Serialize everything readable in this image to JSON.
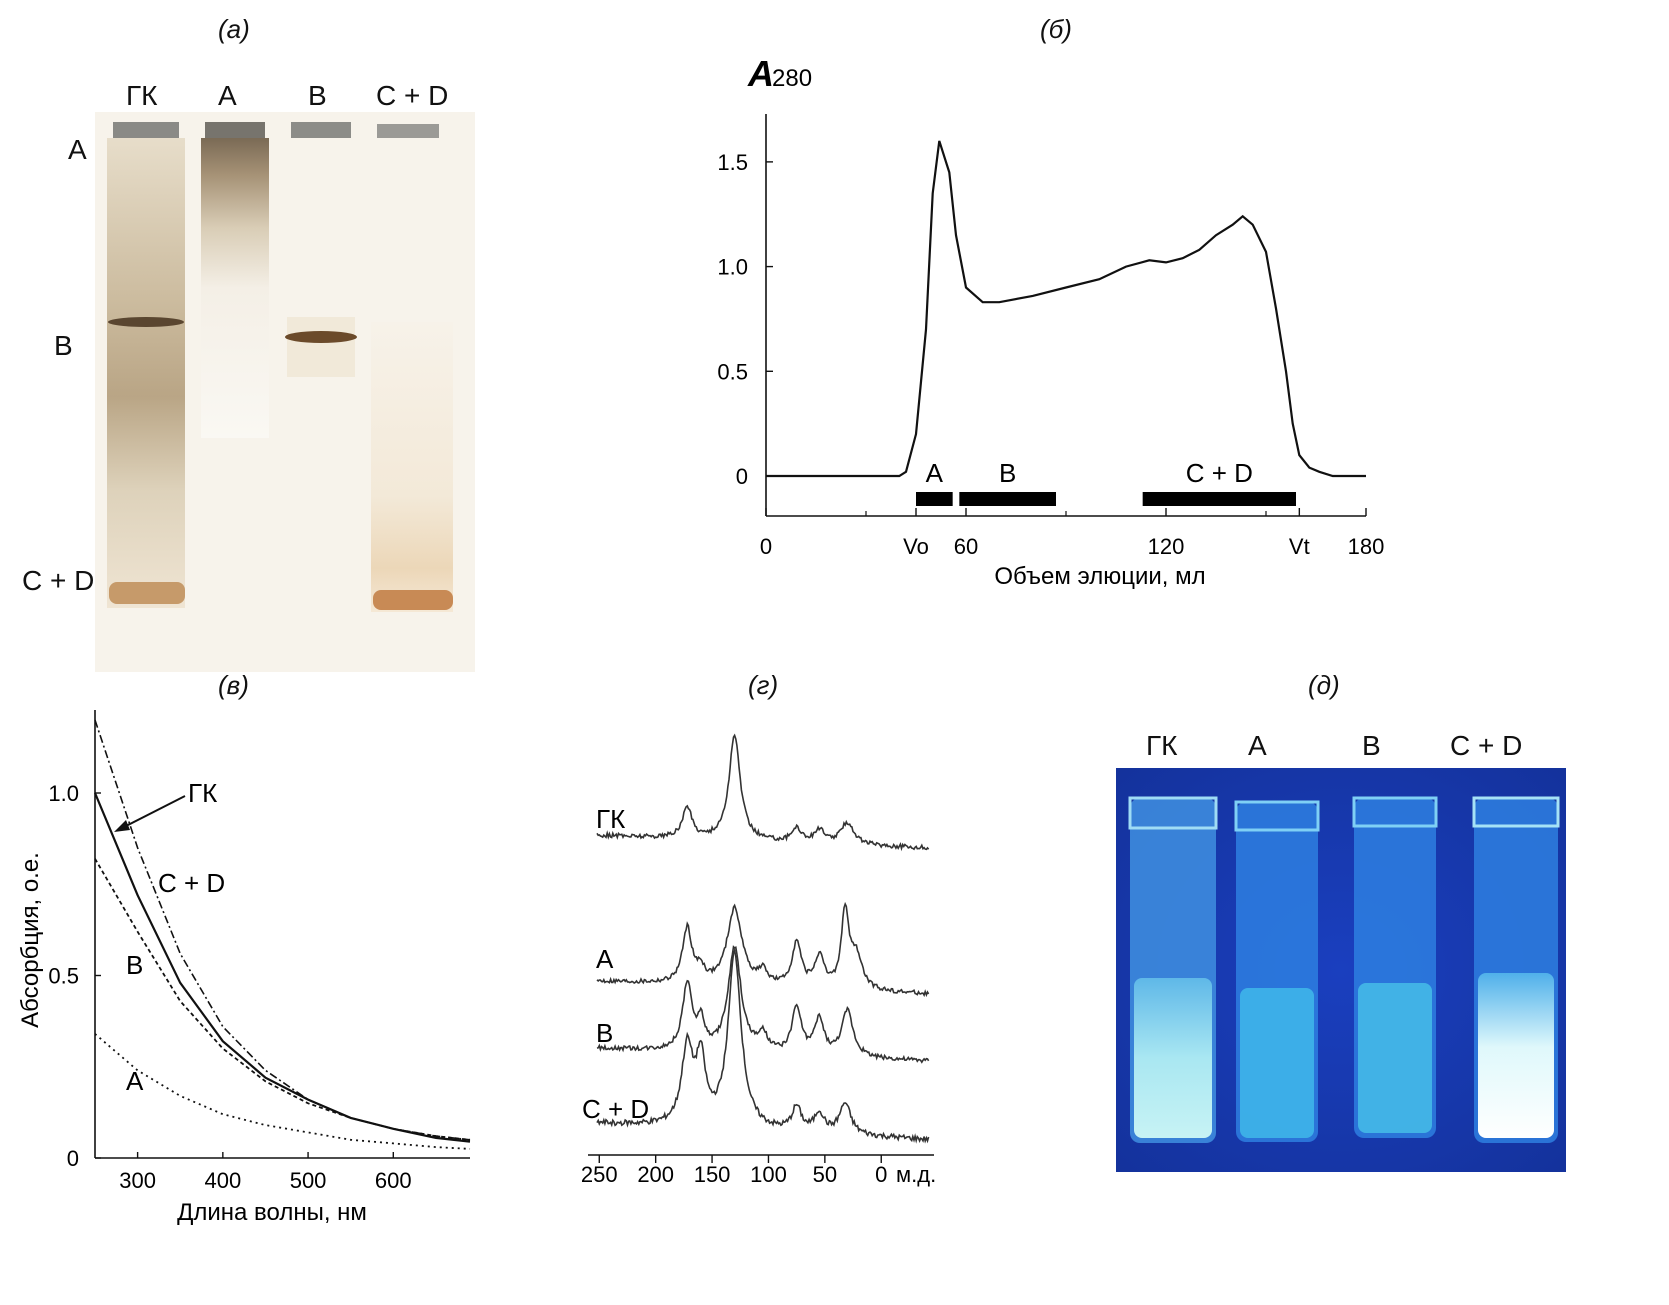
{
  "panel_labels": {
    "a": "(а)",
    "b": "(б)",
    "v": "(в)",
    "g": "(г)",
    "d": "(д)"
  },
  "gel": {
    "lanes": [
      "ГК",
      "A",
      "B",
      "C + D"
    ],
    "rows": [
      "A",
      "B",
      "C + D"
    ]
  },
  "chart_data": [
    {
      "type": "line",
      "panel": "(б)",
      "ylabel_main": "A",
      "ylabel_sub": "280",
      "xlabel": "Объем элюции, мл",
      "xlim": [
        0,
        180
      ],
      "ylim": [
        0,
        1.7
      ],
      "x_ticks": [
        "0",
        "Vo",
        "60",
        "120",
        "Vt",
        "180"
      ],
      "y_ticks": [
        "0",
        "0.5",
        "1.0",
        "1.5"
      ],
      "x": [
        0,
        40,
        42,
        45,
        48,
        50,
        52,
        55,
        57,
        60,
        65,
        70,
        80,
        90,
        100,
        108,
        115,
        120,
        125,
        130,
        135,
        140,
        143,
        146,
        150,
        153,
        156,
        158,
        160,
        163,
        166,
        170,
        175,
        180
      ],
      "values": [
        0,
        0,
        0.02,
        0.2,
        0.7,
        1.35,
        1.6,
        1.45,
        1.15,
        0.9,
        0.83,
        0.83,
        0.86,
        0.9,
        0.94,
        1.0,
        1.03,
        1.02,
        1.04,
        1.08,
        1.15,
        1.2,
        1.24,
        1.2,
        1.07,
        0.8,
        0.5,
        0.25,
        0.1,
        0.04,
        0.02,
        0.0,
        0.0,
        0.0
      ],
      "fractions": [
        {
          "label": "A",
          "start": 45,
          "end": 56
        },
        {
          "label": "B",
          "start": 58,
          "end": 87
        },
        {
          "label": "C + D",
          "start": 113,
          "end": 159
        }
      ]
    },
    {
      "type": "line",
      "panel": "(в)",
      "xlabel": "Длина волны, нм",
      "ylabel": "Абсорбция, о.е.",
      "xlim": [
        250,
        690
      ],
      "ylim": [
        0,
        1.2
      ],
      "x_ticks": [
        "300",
        "400",
        "500",
        "600"
      ],
      "y_ticks": [
        "0",
        "0.5",
        "1.0"
      ],
      "x": [
        250,
        300,
        350,
        400,
        450,
        500,
        550,
        600,
        650,
        690
      ],
      "series": [
        {
          "name": "ГК",
          "values": [
            1.0,
            0.72,
            0.48,
            0.32,
            0.22,
            0.16,
            0.11,
            0.08,
            0.055,
            0.045
          ]
        },
        {
          "name": "C + D",
          "values": [
            1.2,
            0.85,
            0.56,
            0.36,
            0.24,
            0.16,
            0.11,
            0.08,
            0.06,
            0.05
          ]
        },
        {
          "name": "B",
          "values": [
            0.82,
            0.62,
            0.43,
            0.3,
            0.21,
            0.15,
            0.11,
            0.08,
            0.06,
            0.05
          ]
        },
        {
          "name": "A",
          "values": [
            0.34,
            0.24,
            0.17,
            0.12,
            0.09,
            0.07,
            0.05,
            0.04,
            0.03,
            0.025
          ]
        }
      ],
      "annotation_labels": [
        "ГК",
        "C + D",
        "B",
        "A"
      ]
    },
    {
      "type": "line",
      "panel": "(г)",
      "xlabel_unit": "м.д.",
      "x_ticks": [
        "250",
        "200",
        "150",
        "100",
        "50",
        "0"
      ],
      "xlim": [
        260,
        -45
      ],
      "series_names": [
        "ГК",
        "A",
        "B",
        "C + D"
      ]
    }
  ],
  "cuvettes": {
    "labels": [
      "ГК",
      "A",
      "B",
      "C + D"
    ]
  }
}
